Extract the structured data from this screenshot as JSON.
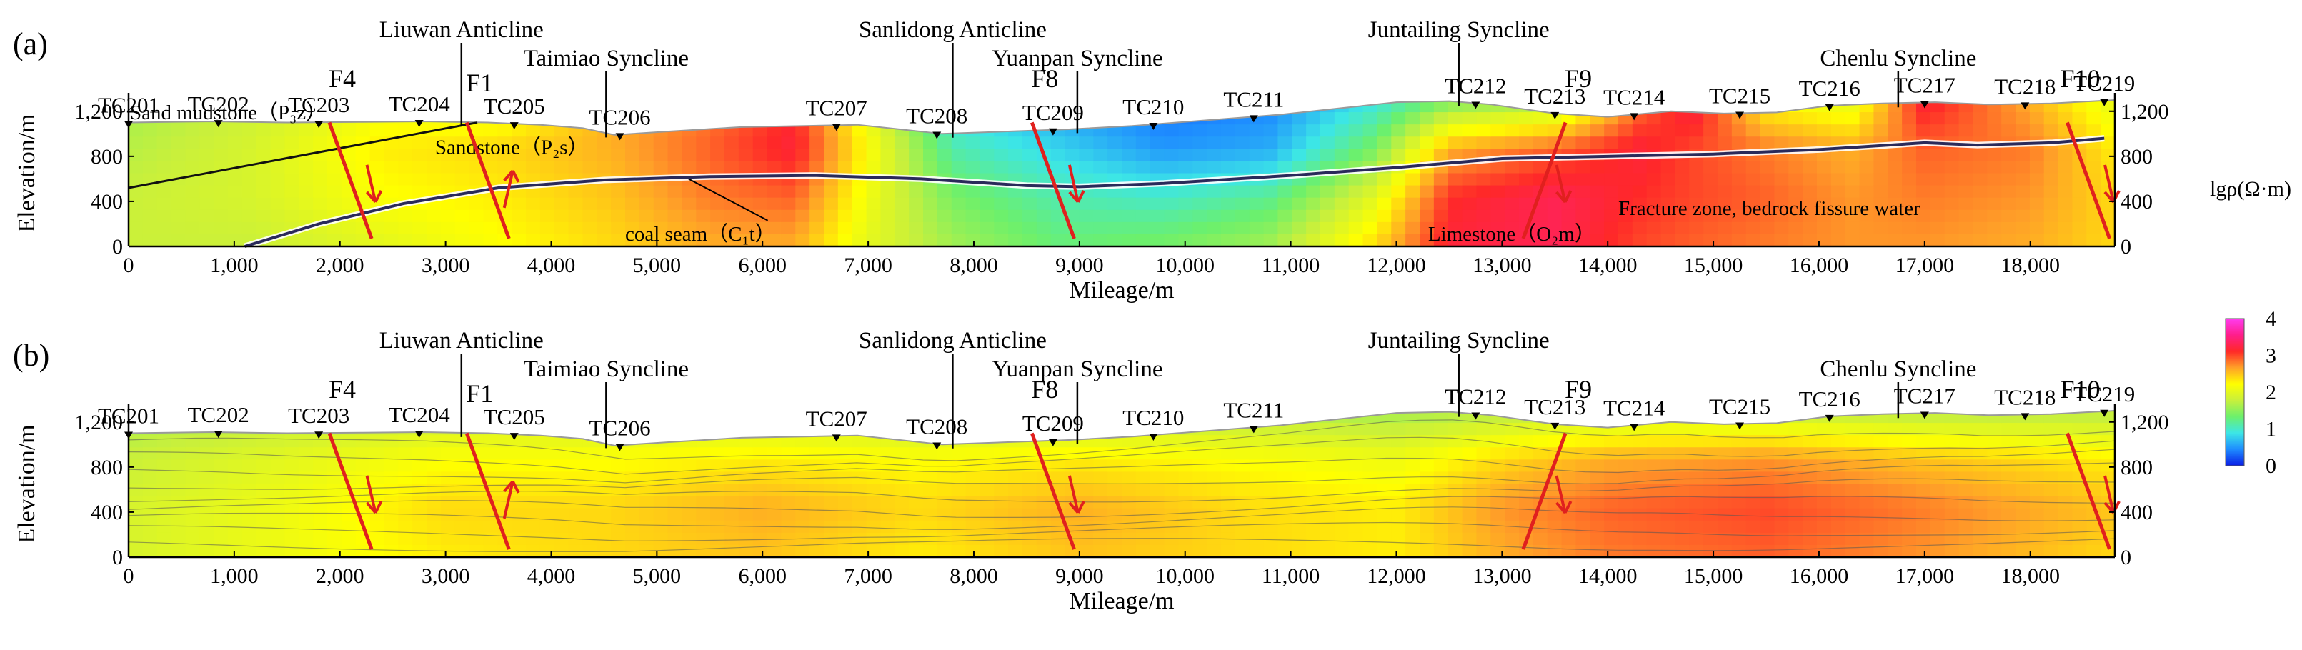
{
  "chart_data": {
    "type": "heatmap",
    "title": "",
    "colorbar": {
      "label": "lgρ(Ω·m)",
      "range": [
        0,
        4
      ],
      "ticks": [
        "0",
        "1",
        "2",
        "3",
        "4"
      ],
      "colors": [
        "#0a1ee6",
        "#1e8cff",
        "#3ce6e6",
        "#6cf06c",
        "#c8f03c",
        "#ffff00",
        "#ffa028",
        "#ff2828",
        "#ff1e8c",
        "#ff3cf0"
      ]
    },
    "x_axis": {
      "label": "Mileage/m",
      "range": [
        0,
        18800
      ],
      "ticks": [
        0,
        1000,
        2000,
        3000,
        4000,
        5000,
        6000,
        7000,
        8000,
        9000,
        10000,
        11000,
        12000,
        13000,
        14000,
        15000,
        16000,
        17000,
        18000
      ],
      "tick_labels": [
        "0",
        "1,000",
        "2,000",
        "3,000",
        "4,000",
        "5,000",
        "6,000",
        "7,000",
        "8,000",
        "9,000",
        "10,000",
        "11,000",
        "12,000",
        "13,000",
        "14,000",
        "15,000",
        "16,000",
        "17,000",
        "18,000"
      ]
    },
    "y_axis": {
      "label": "Elevation/m",
      "range": [
        0,
        1300
      ],
      "ticks": [
        0,
        400,
        800,
        1200
      ],
      "left_tick_labels": [
        "0",
        "400",
        "800",
        "1,200"
      ],
      "right_tick_labels": [
        "0",
        "400",
        "800",
        "1,200"
      ]
    },
    "surface_profile": {
      "mileage": [
        0,
        800,
        1500,
        2200,
        2800,
        3400,
        3900,
        4300,
        4600,
        5100,
        5800,
        6400,
        6900,
        7300,
        7700,
        8300,
        8900,
        9500,
        10200,
        10900,
        11500,
        12000,
        12500,
        12900,
        13500,
        14000,
        14600,
        15100,
        15600,
        16100,
        16600,
        17100,
        17600,
        18200,
        18800
      ],
      "elevation": [
        1100,
        1110,
        1100,
        1105,
        1110,
        1100,
        1080,
        1050,
        990,
        1020,
        1060,
        1070,
        1080,
        1040,
        1000,
        1020,
        1040,
        1070,
        1120,
        1170,
        1230,
        1280,
        1290,
        1260,
        1180,
        1150,
        1200,
        1180,
        1190,
        1250,
        1270,
        1280,
        1260,
        1270,
        1300
      ]
    },
    "coal_seam_profile": {
      "mileage": [
        1100,
        1800,
        2600,
        3500,
        4500,
        5500,
        6500,
        7500,
        8500,
        9000,
        9800,
        11000,
        12000,
        13000,
        14000,
        15000,
        16000,
        17000,
        17500,
        18200,
        18700
      ],
      "elevation": [
        0,
        200,
        380,
        520,
        590,
        620,
        630,
        600,
        540,
        530,
        560,
        630,
        700,
        780,
        800,
        820,
        860,
        920,
        900,
        920,
        960
      ]
    },
    "stations": {
      "names": [
        "TC201",
        "TC202",
        "TC203",
        "TC204",
        "TC205",
        "TC206",
        "TC207",
        "TC208",
        "TC209",
        "TC210",
        "TC211",
        "TC212",
        "TC213",
        "TC214",
        "TC215",
        "TC216",
        "TC217",
        "TC218",
        "TC219"
      ],
      "mileage": [
        0,
        850,
        1800,
        2750,
        3650,
        4650,
        6700,
        7650,
        8750,
        9700,
        10650,
        12750,
        13500,
        14250,
        15250,
        16100,
        17000,
        17950,
        18700
      ]
    },
    "structures": [
      {
        "name": "Liuwan Anticline",
        "mileage": 3150
      },
      {
        "name": "Taimiao Syncline",
        "mileage": 4520
      },
      {
        "name": "Sanlidong Anticline",
        "mileage": 7800
      },
      {
        "name": "Yuanpan Syncline",
        "mileage": 8980
      },
      {
        "name": "Juntailing Syncline",
        "mileage": 12590
      },
      {
        "name": "Chenlu Syncline",
        "mileage": 16750
      }
    ],
    "faults": [
      {
        "name": "F4",
        "top_mileage": 1900,
        "bottom_mileage": 2300,
        "motion": "normal",
        "panel_b_motion": "normal"
      },
      {
        "name": "F1",
        "top_mileage": 3200,
        "bottom_mileage": 3600,
        "motion": "reverse",
        "panel_b_motion": "reverse"
      },
      {
        "name": "F8",
        "top_mileage": 8550,
        "bottom_mileage": 8950,
        "motion": "normal",
        "panel_b_motion": "normal"
      },
      {
        "name": "F9",
        "top_mileage": 13600,
        "bottom_mileage": 13200,
        "motion": "normal",
        "panel_b_motion": "normal"
      },
      {
        "name": "F10",
        "top_mileage": 18350,
        "bottom_mileage": 18750,
        "motion": "normal",
        "panel_b_motion": "normal"
      }
    ],
    "panels": [
      {
        "label": "(a)",
        "description_layers": true,
        "resistivity_anchors": [
          [
            {
              "m": 0,
              "v": 1.6
            },
            {
              "m": 1200,
              "v": 1.8
            },
            {
              "m": 2400,
              "v": 2.1
            },
            {
              "m": 3500,
              "v": 2.0
            },
            {
              "m": 4600,
              "v": 2.6
            },
            {
              "m": 5500,
              "v": 2.8
            },
            {
              "m": 6300,
              "v": 3.1
            },
            {
              "m": 7000,
              "v": 2.0
            },
            {
              "m": 7800,
              "v": 0.8
            },
            {
              "m": 8800,
              "v": 0.5
            },
            {
              "m": 9800,
              "v": 0.3
            },
            {
              "m": 10800,
              "v": 0.4
            },
            {
              "m": 11800,
              "v": 0.9
            },
            {
              "m": 12500,
              "v": 1.4
            },
            {
              "m": 13500,
              "v": 1.6
            },
            {
              "m": 14300,
              "v": 2.8
            },
            {
              "m": 14800,
              "v": 3.3
            },
            {
              "m": 15500,
              "v": 2.2
            },
            {
              "m": 16300,
              "v": 2.0
            },
            {
              "m": 17000,
              "v": 3.2
            },
            {
              "m": 18000,
              "v": 2.6
            },
            {
              "m": 18800,
              "v": 2.0
            }
          ],
          [
            {
              "m": 0,
              "v": 1.7
            },
            {
              "m": 1200,
              "v": 1.9
            },
            {
              "m": 2400,
              "v": 2.3
            },
            {
              "m": 3500,
              "v": 2.4
            },
            {
              "m": 4600,
              "v": 2.6
            },
            {
              "m": 5500,
              "v": 2.9
            },
            {
              "m": 6300,
              "v": 3.2
            },
            {
              "m": 7000,
              "v": 2.2
            },
            {
              "m": 7800,
              "v": 1.1
            },
            {
              "m": 8800,
              "v": 0.8
            },
            {
              "m": 9800,
              "v": 0.5
            },
            {
              "m": 10800,
              "v": 0.6
            },
            {
              "m": 11800,
              "v": 1.4
            },
            {
              "m": 12500,
              "v": 2.6
            },
            {
              "m": 13500,
              "v": 2.9
            },
            {
              "m": 14300,
              "v": 3.2
            },
            {
              "m": 14800,
              "v": 3.0
            },
            {
              "m": 15500,
              "v": 2.8
            },
            {
              "m": 16300,
              "v": 2.6
            },
            {
              "m": 17000,
              "v": 2.9
            },
            {
              "m": 18000,
              "v": 2.8
            },
            {
              "m": 18800,
              "v": 2.3
            }
          ],
          [
            {
              "m": 0,
              "v": 1.8
            },
            {
              "m": 1200,
              "v": 1.9
            },
            {
              "m": 2400,
              "v": 2.2
            },
            {
              "m": 3500,
              "v": 2.3
            },
            {
              "m": 4600,
              "v": 2.5
            },
            {
              "m": 5500,
              "v": 2.8
            },
            {
              "m": 6300,
              "v": 2.9
            },
            {
              "m": 7000,
              "v": 2.1
            },
            {
              "m": 7800,
              "v": 1.4
            },
            {
              "m": 8800,
              "v": 1.1
            },
            {
              "m": 9800,
              "v": 1.0
            },
            {
              "m": 10800,
              "v": 1.2
            },
            {
              "m": 11800,
              "v": 2.0
            },
            {
              "m": 12500,
              "v": 3.1
            },
            {
              "m": 13500,
              "v": 3.3
            },
            {
              "m": 14300,
              "v": 3.1
            },
            {
              "m": 14800,
              "v": 3.0
            },
            {
              "m": 15500,
              "v": 2.9
            },
            {
              "m": 16300,
              "v": 2.7
            },
            {
              "m": 17000,
              "v": 2.8
            },
            {
              "m": 18000,
              "v": 2.7
            },
            {
              "m": 18800,
              "v": 2.4
            }
          ],
          [
            {
              "m": 0,
              "v": 1.8
            },
            {
              "m": 1200,
              "v": 1.8
            },
            {
              "m": 2400,
              "v": 2.0
            },
            {
              "m": 3500,
              "v": 2.2
            },
            {
              "m": 4600,
              "v": 2.4
            },
            {
              "m": 5500,
              "v": 2.6
            },
            {
              "m": 6300,
              "v": 2.6
            },
            {
              "m": 7000,
              "v": 2.0
            },
            {
              "m": 7800,
              "v": 1.6
            },
            {
              "m": 8800,
              "v": 1.3
            },
            {
              "m": 9800,
              "v": 1.4
            },
            {
              "m": 10800,
              "v": 1.6
            },
            {
              "m": 11800,
              "v": 2.4
            },
            {
              "m": 12500,
              "v": 3.2
            },
            {
              "m": 13500,
              "v": 3.3
            },
            {
              "m": 14300,
              "v": 3.0
            },
            {
              "m": 14800,
              "v": 2.9
            },
            {
              "m": 15500,
              "v": 2.8
            },
            {
              "m": 16300,
              "v": 2.7
            },
            {
              "m": 17000,
              "v": 2.7
            },
            {
              "m": 18000,
              "v": 2.6
            },
            {
              "m": 18800,
              "v": 2.4
            }
          ]
        ],
        "annotations": [
          {
            "text": "Sand mudstone（P₃z）",
            "mileage": 0,
            "elevation": 1130
          },
          {
            "text": "Sandstone（P₂s）",
            "mileage": 2900,
            "elevation": 820
          },
          {
            "text": "coal seam（C₁t）",
            "mileage": 4700,
            "elevation": 50
          },
          {
            "text": "Limestone（O₂m）",
            "mileage": 12300,
            "elevation": 50
          },
          {
            "text": "Fracture zone, bedrock fissure water",
            "mileage": 14100,
            "elevation": 280
          }
        ]
      },
      {
        "label": "(b)",
        "description_layers": false,
        "resistivity_anchors": [
          [
            {
              "m": 0,
              "v": 1.6
            },
            {
              "m": 1500,
              "v": 1.7
            },
            {
              "m": 3000,
              "v": 1.8
            },
            {
              "m": 4500,
              "v": 1.8
            },
            {
              "m": 6000,
              "v": 1.8
            },
            {
              "m": 7500,
              "v": 1.7
            },
            {
              "m": 9000,
              "v": 1.7
            },
            {
              "m": 10500,
              "v": 1.7
            },
            {
              "m": 12000,
              "v": 1.6
            },
            {
              "m": 13000,
              "v": 1.7
            },
            {
              "m": 14000,
              "v": 1.8
            },
            {
              "m": 15500,
              "v": 1.8
            },
            {
              "m": 17000,
              "v": 1.7
            },
            {
              "m": 18800,
              "v": 1.7
            }
          ],
          [
            {
              "m": 0,
              "v": 1.8
            },
            {
              "m": 1500,
              "v": 2.0
            },
            {
              "m": 3000,
              "v": 2.2
            },
            {
              "m": 4500,
              "v": 2.2
            },
            {
              "m": 6000,
              "v": 2.3
            },
            {
              "m": 7500,
              "v": 2.2
            },
            {
              "m": 9000,
              "v": 2.3
            },
            {
              "m": 10500,
              "v": 2.2
            },
            {
              "m": 12000,
              "v": 2.1
            },
            {
              "m": 13000,
              "v": 2.4
            },
            {
              "m": 14000,
              "v": 2.6
            },
            {
              "m": 15500,
              "v": 2.7
            },
            {
              "m": 17000,
              "v": 2.5
            },
            {
              "m": 18800,
              "v": 2.3
            }
          ],
          [
            {
              "m": 0,
              "v": 1.9
            },
            {
              "m": 1500,
              "v": 2.1
            },
            {
              "m": 3000,
              "v": 2.4
            },
            {
              "m": 4500,
              "v": 2.4
            },
            {
              "m": 6000,
              "v": 2.6
            },
            {
              "m": 7500,
              "v": 2.4
            },
            {
              "m": 9000,
              "v": 2.6
            },
            {
              "m": 10500,
              "v": 2.4
            },
            {
              "m": 12000,
              "v": 2.3
            },
            {
              "m": 13000,
              "v": 2.7
            },
            {
              "m": 14000,
              "v": 2.9
            },
            {
              "m": 15500,
              "v": 3.0
            },
            {
              "m": 17000,
              "v": 2.8
            },
            {
              "m": 18800,
              "v": 2.5
            }
          ],
          [
            {
              "m": 0,
              "v": 1.9
            },
            {
              "m": 1500,
              "v": 2.1
            },
            {
              "m": 3000,
              "v": 2.3
            },
            {
              "m": 4500,
              "v": 2.4
            },
            {
              "m": 6000,
              "v": 2.5
            },
            {
              "m": 7500,
              "v": 2.3
            },
            {
              "m": 9000,
              "v": 2.5
            },
            {
              "m": 10500,
              "v": 2.4
            },
            {
              "m": 12000,
              "v": 2.3
            },
            {
              "m": 13000,
              "v": 2.6
            },
            {
              "m": 14000,
              "v": 2.8
            },
            {
              "m": 15500,
              "v": 2.9
            },
            {
              "m": 17000,
              "v": 2.7
            },
            {
              "m": 18800,
              "v": 2.4
            }
          ]
        ],
        "annotations": []
      }
    ]
  }
}
